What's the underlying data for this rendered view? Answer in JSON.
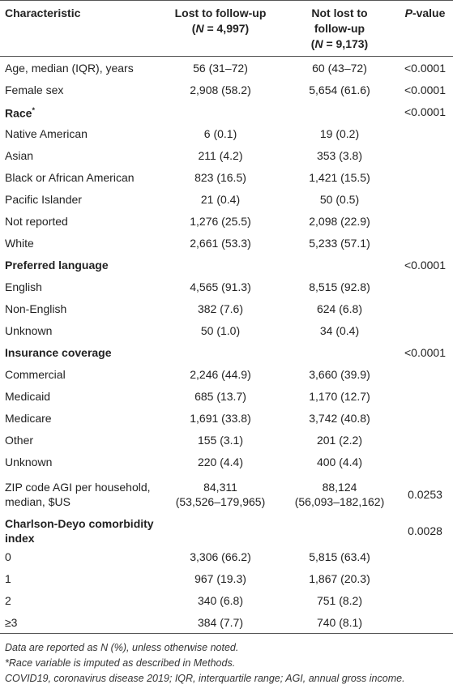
{
  "table": {
    "header": [
      [
        {
          "text": "Characteristic"
        }
      ],
      [
        {
          "text": "Lost to follow-up"
        },
        {
          "text": "(",
          "newline": true
        },
        {
          "text": "N",
          "italic": true
        },
        {
          "text": " = 4,997)"
        }
      ],
      [
        {
          "text": "Not lost to"
        },
        {
          "text": "follow-up",
          "newline": true
        },
        {
          "text": "(",
          "newline": true
        },
        {
          "text": "N",
          "italic": true
        },
        {
          "text": " = 9,173)"
        }
      ],
      [
        {
          "text": "P",
          "italic": true
        },
        {
          "text": "-value"
        }
      ]
    ],
    "rows": [
      {
        "cells": [
          "Age, median (IQR), years",
          "56 (31–72)",
          "60 (43–72)",
          "<0.0001"
        ]
      },
      {
        "cells": [
          "Female sex",
          "2,908 (58.2)",
          "5,654 (61.6)",
          "<0.0001"
        ]
      },
      {
        "section": true,
        "cells": [
          [
            {
              "text": "Race"
            },
            {
              "text": "*",
              "sup": true
            }
          ],
          "",
          "",
          "<0.0001"
        ]
      },
      {
        "cells": [
          "Native American",
          "6 (0.1)",
          "19 (0.2)",
          ""
        ]
      },
      {
        "cells": [
          "Asian",
          "211 (4.2)",
          "353 (3.8)",
          ""
        ]
      },
      {
        "cells": [
          "Black or African American",
          "823 (16.5)",
          "1,421 (15.5)",
          ""
        ]
      },
      {
        "cells": [
          "Pacific Islander",
          "21 (0.4)",
          "50 (0.5)",
          ""
        ]
      },
      {
        "cells": [
          "Not reported",
          "1,276 (25.5)",
          "2,098 (22.9)",
          ""
        ]
      },
      {
        "cells": [
          "White",
          "2,661 (53.3)",
          "5,233 (57.1)",
          ""
        ]
      },
      {
        "section": true,
        "cells": [
          "Preferred language",
          "",
          "",
          "<0.0001"
        ]
      },
      {
        "cells": [
          "English",
          "4,565 (91.3)",
          "8,515 (92.8)",
          ""
        ]
      },
      {
        "cells": [
          "Non-English",
          "382 (7.6)",
          "624 (6.8)",
          ""
        ]
      },
      {
        "cells": [
          "Unknown",
          "50 (1.0)",
          "34 (0.4)",
          ""
        ]
      },
      {
        "section": true,
        "cells": [
          "Insurance coverage",
          "",
          "",
          "<0.0001"
        ]
      },
      {
        "cells": [
          "Commercial",
          "2,246 (44.9)",
          "3,660 (39.9)",
          ""
        ]
      },
      {
        "cells": [
          "Medicaid",
          "685 (13.7)",
          "1,170 (12.7)",
          ""
        ]
      },
      {
        "cells": [
          "Medicare",
          "1,691 (33.8)",
          "3,742 (40.8)",
          ""
        ]
      },
      {
        "cells": [
          "Other",
          "155 (3.1)",
          "201 (2.2)",
          ""
        ]
      },
      {
        "cells": [
          "Unknown",
          "220 (4.4)",
          "400 (4.4)",
          ""
        ]
      },
      {
        "cells": [
          "ZIP code AGI per household, median, $US",
          [
            "84,311",
            "(53,526–179,965)"
          ],
          [
            "88,124",
            "(56,093–182,162)"
          ],
          "0.0253"
        ]
      },
      {
        "section": true,
        "cells": [
          "Charlson-Deyo comorbidity index",
          "",
          "",
          "0.0028"
        ]
      },
      {
        "cells": [
          "0",
          "3,306 (66.2)",
          "5,815 (63.4)",
          ""
        ]
      },
      {
        "cells": [
          "1",
          "967 (19.3)",
          "1,867 (20.3)",
          ""
        ]
      },
      {
        "cells": [
          "2",
          "340 (6.8)",
          "751 (8.2)",
          ""
        ]
      },
      {
        "cells": [
          "≥3",
          "384 (7.7)",
          "740 (8.1)",
          ""
        ]
      }
    ],
    "footnotes": [
      "Data are reported as N (%), unless otherwise noted.",
      "*Race variable is imputed as described in Methods.",
      "COVID19, coronavirus disease 2019; IQR, interquartile range; AGI, annual gross income."
    ]
  }
}
